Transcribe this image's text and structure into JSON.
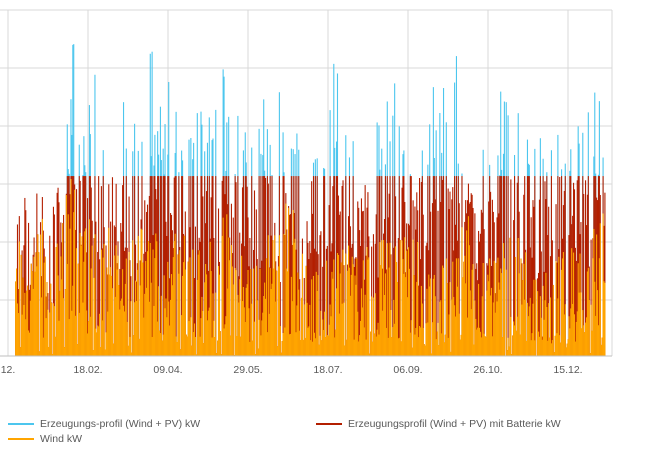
{
  "colors": {
    "profile": "#4cc6ee",
    "battery": "#b31f00",
    "wind": "#ffa500",
    "grid": "#d9d9d9",
    "axis": "#bfbfbf",
    "text": "#595959"
  },
  "legend": {
    "profile": "Erzeugungs-profil (Wind + PV) kW",
    "battery": "Erzeugungsprofil (Wind + PV) mit Batterie kW",
    "wind": "Wind kW"
  },
  "chart_data": {
    "type": "area",
    "title": "",
    "xlabel": "",
    "ylabel": "",
    "x_tick_labels": [
      "12.",
      "18.02.",
      "09.04.",
      "29.05.",
      "18.07.",
      "06.09.",
      "26.10.",
      "15.12."
    ],
    "y_tick_labels": [],
    "grid": "on",
    "legend_position": "bottom",
    "x_range_days": [
      -9,
      356
    ],
    "battery_cap_fraction": 0.52,
    "series": [
      {
        "name": "Erzeugungs-profil (Wind + PV) kW",
        "key": "profile",
        "x_days": [
          0,
          5,
          10,
          15,
          20,
          25,
          30,
          35,
          40,
          45,
          50,
          55,
          60,
          65,
          70,
          75,
          80,
          85,
          90,
          95,
          100,
          105,
          110,
          115,
          120,
          125,
          130,
          135,
          140,
          145,
          150,
          155,
          160,
          165,
          170,
          175,
          180,
          185,
          190,
          195,
          200,
          205,
          210,
          215,
          220,
          225,
          230,
          235,
          240,
          245,
          250,
          255,
          260,
          265,
          270,
          275,
          280,
          285,
          290,
          295,
          300,
          305,
          310,
          315,
          320,
          325,
          330,
          335,
          340,
          345
        ],
        "values": [
          0.38,
          0.45,
          0.4,
          0.5,
          0.33,
          0.66,
          0.55,
          0.93,
          0.7,
          0.8,
          0.68,
          0.64,
          0.6,
          0.72,
          0.68,
          0.62,
          0.76,
          0.8,
          0.7,
          0.72,
          0.76,
          0.64,
          0.8,
          0.68,
          0.74,
          0.87,
          0.7,
          0.72,
          0.58,
          0.62,
          0.7,
          0.61,
          0.73,
          0.7,
          0.6,
          0.6,
          0.58,
          0.7,
          0.86,
          0.68,
          0.6,
          0.6,
          0.66,
          0.62,
          0.68,
          0.72,
          0.76,
          0.6,
          0.6,
          0.68,
          0.7,
          0.72,
          0.75,
          0.76,
          0.6,
          0.62,
          0.58,
          0.64,
          0.72,
          0.74,
          0.62,
          0.66,
          0.64,
          0.6,
          0.58,
          0.6,
          0.56,
          0.62,
          0.72,
          0.78
        ]
      },
      {
        "name": "Erzeugungsprofil (Wind + PV) mit Batterie kW",
        "key": "battery",
        "x_days": [
          0,
          5,
          10,
          15,
          20,
          25,
          30,
          35,
          40,
          45,
          50,
          55,
          60,
          65,
          70,
          75,
          80,
          85,
          90,
          95,
          100,
          105,
          110,
          115,
          120,
          125,
          130,
          135,
          140,
          145,
          150,
          155,
          160,
          165,
          170,
          175,
          180,
          185,
          190,
          195,
          200,
          205,
          210,
          215,
          220,
          225,
          230,
          235,
          240,
          245,
          250,
          255,
          260,
          265,
          270,
          275,
          280,
          285,
          290,
          295,
          300,
          305,
          310,
          315,
          320,
          325,
          330,
          335,
          340,
          345
        ],
        "values": [
          0.38,
          0.45,
          0.4,
          0.5,
          0.33,
          0.52,
          0.52,
          0.52,
          0.52,
          0.52,
          0.52,
          0.52,
          0.52,
          0.52,
          0.52,
          0.52,
          0.52,
          0.52,
          0.52,
          0.52,
          0.52,
          0.52,
          0.52,
          0.52,
          0.52,
          0.52,
          0.52,
          0.52,
          0.52,
          0.52,
          0.52,
          0.52,
          0.52,
          0.52,
          0.52,
          0.52,
          0.52,
          0.52,
          0.52,
          0.52,
          0.52,
          0.52,
          0.52,
          0.52,
          0.52,
          0.52,
          0.52,
          0.52,
          0.52,
          0.52,
          0.52,
          0.52,
          0.52,
          0.52,
          0.52,
          0.52,
          0.52,
          0.52,
          0.52,
          0.52,
          0.52,
          0.52,
          0.52,
          0.52,
          0.52,
          0.52,
          0.52,
          0.52,
          0.52,
          0.52
        ]
      },
      {
        "name": "Wind kW",
        "key": "wind",
        "x_days": [
          0,
          5,
          10,
          15,
          20,
          25,
          30,
          35,
          40,
          45,
          50,
          55,
          60,
          65,
          70,
          75,
          80,
          85,
          90,
          95,
          100,
          105,
          110,
          115,
          120,
          125,
          130,
          135,
          140,
          145,
          150,
          155,
          160,
          165,
          170,
          175,
          180,
          185,
          190,
          195,
          200,
          205,
          210,
          215,
          220,
          225,
          230,
          235,
          240,
          245,
          250,
          255,
          260,
          265,
          270,
          275,
          280,
          285,
          290,
          295,
          300,
          305,
          310,
          315,
          320,
          325,
          330,
          335,
          340,
          345
        ],
        "values": [
          0.22,
          0.3,
          0.34,
          0.28,
          0.2,
          0.26,
          0.32,
          0.38,
          0.34,
          0.3,
          0.28,
          0.26,
          0.22,
          0.24,
          0.25,
          0.28,
          0.26,
          0.24,
          0.22,
          0.26,
          0.28,
          0.3,
          0.24,
          0.22,
          0.26,
          0.3,
          0.24,
          0.22,
          0.2,
          0.18,
          0.26,
          0.28,
          0.32,
          0.3,
          0.26,
          0.18,
          0.16,
          0.2,
          0.24,
          0.26,
          0.22,
          0.2,
          0.24,
          0.26,
          0.22,
          0.24,
          0.26,
          0.28,
          0.22,
          0.16,
          0.18,
          0.2,
          0.26,
          0.28,
          0.3,
          0.24,
          0.2,
          0.18,
          0.22,
          0.26,
          0.24,
          0.2,
          0.18,
          0.16,
          0.18,
          0.2,
          0.22,
          0.2,
          0.26,
          0.28
        ]
      }
    ]
  }
}
